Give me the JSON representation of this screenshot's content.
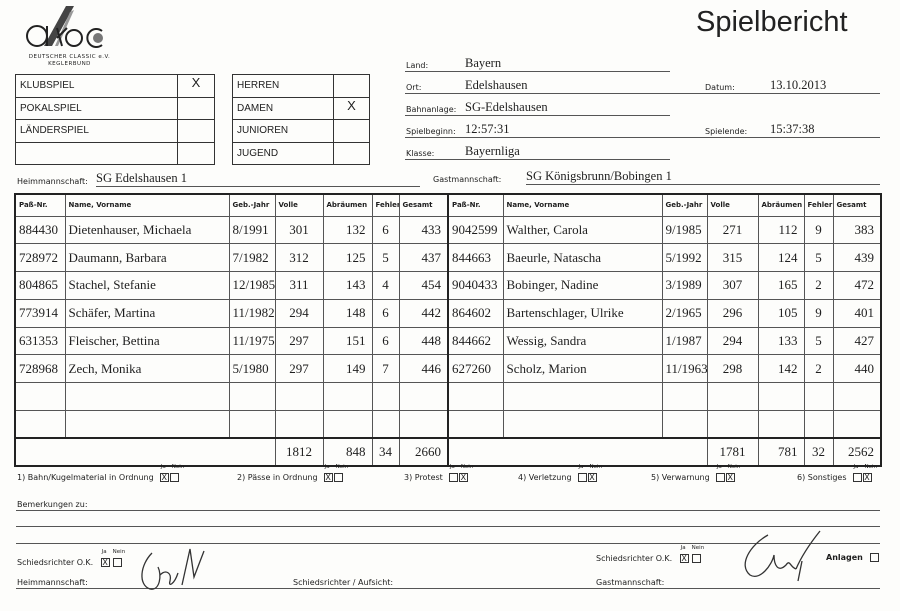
{
  "title": "Spielbericht",
  "logo": {
    "text": "dkbc",
    "org_line1": "DEUTSCHER CLASSIC e.V.",
    "org_line2": "KEGLERBUND"
  },
  "game_type": [
    {
      "label": "KLUBSPIEL",
      "mark": "X"
    },
    {
      "label": "POKALSPIEL",
      "mark": ""
    },
    {
      "label": "LÄNDERSPIEL",
      "mark": ""
    },
    {
      "label": "",
      "mark": ""
    }
  ],
  "category": [
    {
      "label": "HERREN",
      "mark": ""
    },
    {
      "label": "DAMEN",
      "mark": "X"
    },
    {
      "label": "JUNIOREN",
      "mark": ""
    },
    {
      "label": "JUGEND",
      "mark": ""
    }
  ],
  "info": {
    "land_label": "Land:",
    "land": "Bayern",
    "ort_label": "Ort:",
    "ort": "Edelshausen",
    "datum_label": "Datum:",
    "datum": "13.10.2013",
    "bahnanlage_label": "Bahnanlage:",
    "bahnanlage": "SG-Edelshausen",
    "spielbeginn_label": "Spielbeginn:",
    "spielbeginn": "12:57:31",
    "spielende_label": "Spielende:",
    "spielende": "15:37:38",
    "klasse_label": "Klasse:",
    "klasse": "Bayernliga"
  },
  "home": {
    "label": "Heimmannschaft:",
    "team": "SG Edelshausen 1",
    "headers": [
      "Paß-Nr.",
      "Name, Vorname",
      "Geb.-Jahr",
      "Volle",
      "Abräumen",
      "Fehler",
      "Gesamt"
    ],
    "rows": [
      [
        "884430",
        "Dietenhauser, Michaela",
        "8/1991",
        "301",
        "132",
        "6",
        "433"
      ],
      [
        "728972",
        "Daumann, Barbara",
        "7/1982",
        "312",
        "125",
        "5",
        "437"
      ],
      [
        "804865",
        "Stachel, Stefanie",
        "12/1985",
        "311",
        "143",
        "4",
        "454"
      ],
      [
        "773914",
        "Schäfer, Martina",
        "11/1982",
        "294",
        "148",
        "6",
        "442"
      ],
      [
        "631353",
        "Fleischer, Bettina",
        "11/1975",
        "297",
        "151",
        "6",
        "448"
      ],
      [
        "728968",
        "Zech, Monika",
        "5/1980",
        "297",
        "149",
        "7",
        "446"
      ]
    ],
    "totals": {
      "volle": "1812",
      "abraeumen": "848",
      "fehler": "34",
      "gesamt": "2660"
    }
  },
  "guest": {
    "label": "Gastmannschaft:",
    "team": "SG Königsbrunn/Bobingen 1",
    "headers": [
      "Paß-Nr.",
      "Name, Vorname",
      "Geb.-Jahr",
      "Volle",
      "Abräumen",
      "Fehler",
      "Gesamt"
    ],
    "rows": [
      [
        "9042599",
        "Walther, Carola",
        "9/1985",
        "271",
        "112",
        "9",
        "383"
      ],
      [
        "844663",
        "Baeurle, Natascha",
        "5/1992",
        "315",
        "124",
        "5",
        "439"
      ],
      [
        "9040433",
        "Bobinger, Nadine",
        "3/1989",
        "307",
        "165",
        "2",
        "472"
      ],
      [
        "864602",
        "Bartenschlager, Ulrike",
        "2/1965",
        "296",
        "105",
        "9",
        "401"
      ],
      [
        "844662",
        "Wessig, Sandra",
        "1/1987",
        "294",
        "133",
        "5",
        "427"
      ],
      [
        "627260",
        "Scholz, Marion",
        "11/1963",
        "298",
        "142",
        "2",
        "440"
      ]
    ],
    "totals": {
      "volle": "1781",
      "abraeumen": "781",
      "fehler": "32",
      "gesamt": "2562"
    }
  },
  "checks": {
    "ja": "Ja",
    "nein": "Nein",
    "items": [
      {
        "label": "1) Bahn/Kugelmaterial in Ordnung",
        "ja": "X",
        "nein": ""
      },
      {
        "label": "2) Pässe in Ordnung",
        "ja": "X",
        "nein": ""
      },
      {
        "label": "3) Protest",
        "ja": "",
        "nein": "X"
      },
      {
        "label": "4) Verletzung",
        "ja": "",
        "nein": "X"
      },
      {
        "label": "5) Verwarnung",
        "ja": "",
        "nein": "X"
      },
      {
        "label": "6) Sonstiges",
        "ja": "",
        "nein": "X"
      }
    ]
  },
  "remarks_label": "Bemerkungen zu:",
  "footer": {
    "referee_ok_label": "Schiedsrichter O.K.",
    "home_ok": {
      "ja": "X",
      "nein": ""
    },
    "guest_ok": {
      "ja": "X",
      "nein": ""
    },
    "anlagen_label": "Anlagen",
    "anlagen": "",
    "home_sign_label": "Heimmannschaft:",
    "referee_sign_label": "Schiedsrichter / Aufsicht:",
    "guest_sign_label": "Gastmannschaft:"
  }
}
